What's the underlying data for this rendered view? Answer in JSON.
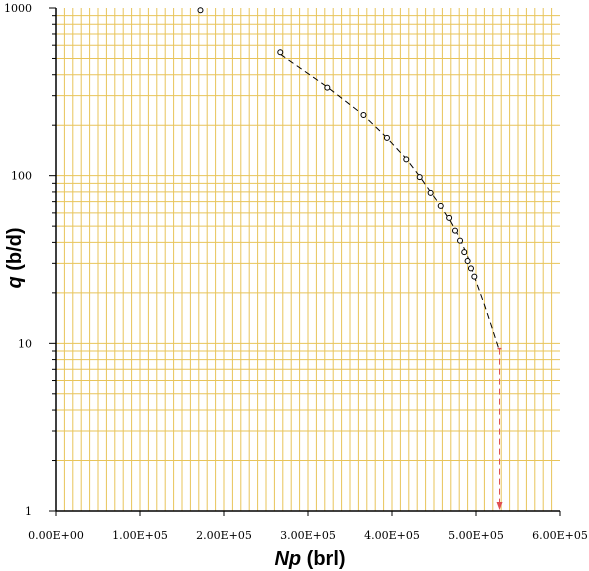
{
  "chart_data": {
    "type": "scatter",
    "title": "",
    "xlabel_var": "Np",
    "xlabel_unit": " (brl)",
    "ylabel_var": "q",
    "ylabel_unit": " (b/d)",
    "x_scale": "linear",
    "y_scale": "log",
    "xlim": [
      0,
      600000
    ],
    "ylim": [
      1,
      1000
    ],
    "grid": true,
    "grid_color": "#e8c45a",
    "x_tick_values": [
      0,
      100000,
      200000,
      300000,
      400000,
      500000,
      600000
    ],
    "x_tick_labels": [
      "0.00E+00",
      "1.00E+05",
      "2.00E+05",
      "3.00E+05",
      "4.00E+05",
      "5.00E+05",
      "6.00E+05"
    ],
    "y_tick_values": [
      1,
      10,
      100,
      1000
    ],
    "y_tick_labels": [
      "1",
      "10",
      "100",
      "1000"
    ],
    "series": [
      {
        "marker": "open-circle",
        "color": "#000000",
        "points": [
          [
            172000,
            970
          ],
          [
            267000,
            545
          ],
          [
            323000,
            335
          ],
          [
            366000,
            230
          ],
          [
            394000,
            168
          ],
          [
            417000,
            125
          ],
          [
            433000,
            98
          ],
          [
            446000,
            79
          ],
          [
            458000,
            66
          ],
          [
            468000,
            56
          ],
          [
            475000,
            47
          ],
          [
            481000,
            41
          ],
          [
            486000,
            35
          ],
          [
            490000,
            31
          ],
          [
            494000,
            28
          ],
          [
            498000,
            25
          ]
        ]
      }
    ],
    "fit_line": {
      "style": "dashed",
      "color": "#000000",
      "points": [
        [
          267000,
          530
        ],
        [
          323000,
          338
        ],
        [
          366000,
          230
        ],
        [
          394000,
          168
        ],
        [
          417000,
          126
        ],
        [
          433000,
          99
        ],
        [
          446000,
          80
        ],
        [
          458000,
          66
        ],
        [
          470000,
          53
        ],
        [
          480000,
          43
        ],
        [
          490000,
          33
        ],
        [
          498000,
          25
        ],
        [
          510000,
          17
        ],
        [
          520000,
          12
        ],
        [
          527000,
          9.3
        ]
      ]
    },
    "extrapolation": {
      "style": "dashed",
      "color": "#e05050",
      "points": [
        [
          528000,
          9.3
        ],
        [
          528000,
          1.0
        ]
      ],
      "arrow_at_end": true
    }
  }
}
